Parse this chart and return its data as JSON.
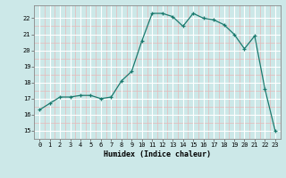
{
  "x": [
    0,
    1,
    2,
    3,
    4,
    5,
    6,
    7,
    8,
    9,
    10,
    11,
    12,
    13,
    14,
    15,
    16,
    17,
    18,
    19,
    20,
    21,
    22,
    23
  ],
  "y": [
    16.3,
    16.7,
    17.1,
    17.1,
    17.2,
    17.2,
    17.0,
    17.1,
    18.1,
    18.7,
    20.6,
    22.3,
    22.3,
    22.1,
    21.5,
    22.3,
    22.0,
    21.9,
    21.6,
    21.0,
    20.1,
    20.9,
    17.6,
    15.0
  ],
  "line_color": "#1a7a6e",
  "marker": "+",
  "marker_size": 3,
  "bg_color": "#cce8e8",
  "grid_major_color": "#ffffff",
  "grid_minor_color": "#e8b8b8",
  "xlabel": "Humidex (Indice chaleur)",
  "xlim": [
    -0.5,
    23.5
  ],
  "ylim": [
    14.5,
    22.8
  ],
  "yticks": [
    15,
    16,
    17,
    18,
    19,
    20,
    21,
    22
  ],
  "xticks": [
    0,
    1,
    2,
    3,
    4,
    5,
    6,
    7,
    8,
    9,
    10,
    11,
    12,
    13,
    14,
    15,
    16,
    17,
    18,
    19,
    20,
    21,
    22,
    23
  ]
}
